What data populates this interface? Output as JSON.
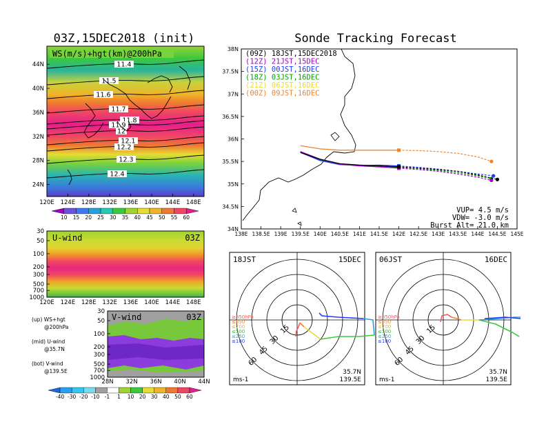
{
  "left_title": "03Z,15DEC2018 (init)",
  "right_title": "Sonde Tracking Forecast",
  "upper_panel": {
    "label": "WS(m/s)+hgt(km)@200hPa",
    "lat_ticks": [
      "44N",
      "40N",
      "36N",
      "32N",
      "28N",
      "24N"
    ],
    "lon_ticks": [
      "120E",
      "124E",
      "128E",
      "132E",
      "136E",
      "140E",
      "144E",
      "148E"
    ],
    "contour_labels": [
      "11.4",
      "11.5",
      "11.6",
      "11.7",
      "11.8",
      "11.9",
      "12",
      "12.1",
      "12.2",
      "12.3",
      "12.4"
    ],
    "colorbar_ticks": [
      "10",
      "15",
      "20",
      "25",
      "30",
      "35",
      "40",
      "45",
      "50",
      "55",
      "60"
    ]
  },
  "mid_panel": {
    "label": "U-wind",
    "time": "03Z",
    "p_ticks": [
      "30",
      "50",
      "100",
      "200",
      "300",
      "500",
      "700",
      "1000"
    ],
    "lon_ticks": [
      "120E",
      "124E",
      "128E",
      "132E",
      "136E",
      "140E",
      "144E",
      "148E"
    ]
  },
  "low_panel": {
    "label": "V-wind",
    "time": "03Z",
    "p_ticks": [
      "30",
      "50",
      "100",
      "200",
      "300",
      "500",
      "700",
      "1000"
    ],
    "lat_ticks": [
      "28N",
      "32N",
      "36N",
      "40N",
      "44N"
    ],
    "colorbar_ticks": [
      "-40",
      "-30",
      "-20",
      "-10",
      "-1",
      "1",
      "10",
      "20",
      "30",
      "40",
      "50",
      "60"
    ]
  },
  "notes": [
    {
      "a": "(up) WS+hgt",
      "b": "@200hPa"
    },
    {
      "a": "(mid) U-wind",
      "b": "@35.7N"
    },
    {
      "a": "(bot) V-wind",
      "b": "@139.5E"
    }
  ],
  "track_panel": {
    "lat_ticks": [
      "38N",
      "37.5N",
      "37N",
      "36.5N",
      "36N",
      "35.5N",
      "35N",
      "34.5N",
      "34N"
    ],
    "lon_ticks": [
      "138E",
      "138.5E",
      "139E",
      "139.5E",
      "140E",
      "140.5E",
      "141E",
      "141.5E",
      "142E",
      "142.5E",
      "143E",
      "143.5E",
      "144E",
      "144.5E",
      "145E"
    ],
    "legend": [
      {
        "text": "(09Z) 18JST,15DEC2018",
        "color": "#000000"
      },
      {
        "text": "(12Z) 21JST,15DEC",
        "color": "#a000c8"
      },
      {
        "text": "(15Z) 00JST,16DEC",
        "color": "#1e3cff"
      },
      {
        "text": "(18Z) 03JST,16DEC",
        "color": "#00a000"
      },
      {
        "text": "(21Z) 06JST,16DEC",
        "color": "#e6dc32"
      },
      {
        "text": "(00Z) 09JST,16DEC",
        "color": "#f08228"
      }
    ],
    "params": [
      "VUP= 4.5 m/s",
      "VDW= -3.0 m/s",
      "Burst Alt= 21.0 km"
    ]
  },
  "hodographs": [
    {
      "time": "18JST",
      "date": "15DEC",
      "unit": "ms-1",
      "lat": "35.7N",
      "lon": "139.5E",
      "rings": [
        "15",
        "30",
        "45",
        "60"
      ],
      "levels": [
        "≥850hPa",
        "≤850",
        "≤700",
        "≤500",
        "≤250",
        "≤100"
      ]
    },
    {
      "time": "06JST",
      "date": "16DEC",
      "unit": "ms-1",
      "lat": "35.7N",
      "lon": "139.5E",
      "rings": [
        "15",
        "30",
        "45",
        "60"
      ],
      "levels": [
        "≥850hPa",
        "≤850",
        "≤700",
        "≤500",
        "≤250",
        "≤100"
      ]
    }
  ],
  "chart_data": [
    {
      "type": "heatmap",
      "title": "WS(m/s)+hgt(km)@200hPa",
      "xlabel": "",
      "ylabel": "",
      "xlim": [
        120,
        150
      ],
      "ylim": [
        22,
        47
      ],
      "contour_levels_km": [
        11.4,
        11.5,
        11.6,
        11.7,
        11.8,
        11.9,
        12.0,
        12.1,
        12.2,
        12.3,
        12.4
      ],
      "colorbar": [
        10,
        15,
        20,
        25,
        30,
        35,
        40,
        45,
        50,
        55,
        60
      ],
      "jet_core_lat": 35,
      "jet_core_speed": 60
    },
    {
      "type": "heatmap",
      "title": "U-wind",
      "xlim": [
        120,
        150
      ],
      "ylim_hPa": [
        1000,
        30
      ],
      "max_speed_level_hPa": 200
    },
    {
      "type": "heatmap",
      "title": "V-wind",
      "xlim": [
        28,
        44
      ],
      "ylim_hPa": [
        1000,
        30
      ]
    },
    {
      "type": "line",
      "title": "Sonde Tracking Forecast",
      "xlim": [
        138,
        145
      ],
      "ylim": [
        34,
        38
      ],
      "series": [
        {
          "name": "(09Z) 18JST,15DEC2018",
          "color": "#000000",
          "x": [
            139.5,
            140.0,
            140.5,
            141.0,
            141.5,
            142.0,
            142.5,
            143.0,
            143.5,
            144.0,
            144.5
          ],
          "y": [
            35.7,
            35.55,
            35.45,
            35.42,
            35.4,
            35.38,
            35.35,
            35.32,
            35.28,
            35.2,
            35.1
          ]
        },
        {
          "name": "(12Z) 21JST,15DEC",
          "color": "#a000c8",
          "x": [
            139.5,
            140.0,
            140.5,
            141.0,
            141.5,
            142.0,
            142.5,
            143.0,
            143.5,
            144.0,
            144.35
          ],
          "y": [
            35.72,
            35.55,
            35.44,
            35.4,
            35.38,
            35.35,
            35.32,
            35.28,
            35.22,
            35.15,
            35.08
          ]
        },
        {
          "name": "(15Z) 00JST,16DEC",
          "color": "#1e3cff",
          "x": [
            139.5,
            140.0,
            140.5,
            141.0,
            141.5,
            142.0,
            142.5,
            143.0,
            143.5,
            144.0,
            144.4
          ],
          "y": [
            35.7,
            35.52,
            35.43,
            35.41,
            35.42,
            35.4,
            35.37,
            35.33,
            35.28,
            35.22,
            35.18
          ]
        },
        {
          "name": "(18Z) 03JST,16DEC",
          "color": "#00a000",
          "x": [
            139.5,
            140.0,
            140.5,
            141.0,
            141.5,
            142.0,
            142.5,
            143.0,
            143.5,
            144.0,
            144.35
          ],
          "y": [
            35.7,
            35.53,
            35.44,
            35.41,
            35.4,
            35.37,
            35.34,
            35.3,
            35.25,
            35.18,
            35.12
          ]
        },
        {
          "name": "(21Z) 06JST,16DEC",
          "color": "#e6dc32",
          "x": [
            139.5,
            140.0,
            140.5,
            141.0,
            141.5,
            142.0,
            142.5,
            143.0,
            143.5,
            144.0,
            144.35
          ],
          "y": [
            35.7,
            35.53,
            35.44,
            35.41,
            35.4,
            35.37,
            35.34,
            35.3,
            35.25,
            35.18,
            35.12
          ]
        },
        {
          "name": "(00Z) 09JST,16DEC",
          "color": "#f08228",
          "x": [
            139.5,
            140.0,
            140.5,
            141.0,
            141.5,
            142.0,
            142.5,
            143.0,
            143.5,
            144.0,
            144.35
          ],
          "y": [
            35.85,
            35.78,
            35.75,
            35.75,
            35.75,
            35.75,
            35.74,
            35.72,
            35.68,
            35.6,
            35.5
          ]
        }
      ]
    }
  ]
}
